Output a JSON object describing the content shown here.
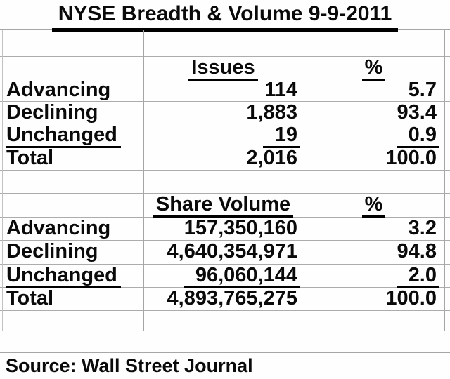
{
  "title": "NYSE Breadth & Volume 9-9-2011",
  "source_note": "Source: Wall Street Journal",
  "colors": {
    "background": "#ffffff",
    "text": "#0a0a0a",
    "grid_line": "#a6a6a6",
    "underline": "#000000"
  },
  "issues_section": {
    "value_header": "Issues",
    "percent_header": "%",
    "rows": [
      {
        "label": "Advancing",
        "value": "114",
        "percent": "5.7"
      },
      {
        "label": "Declining",
        "value": "1,883",
        "percent": "93.4"
      },
      {
        "label": "Unchanged",
        "value": "19",
        "percent": "0.9"
      },
      {
        "label": "Total",
        "value": "2,016",
        "percent": "100.0"
      }
    ]
  },
  "volume_section": {
    "value_header": "Share Volume",
    "percent_header": "%",
    "rows": [
      {
        "label": "Advancing",
        "value": "157,350,160",
        "percent": "3.2"
      },
      {
        "label": "Declining",
        "value": "4,640,354,971",
        "percent": "94.8"
      },
      {
        "label": "Unchanged",
        "value": "96,060,144",
        "percent": "2.0"
      },
      {
        "label": "Total",
        "value": "4,893,765,275",
        "percent": "100.0"
      }
    ]
  }
}
